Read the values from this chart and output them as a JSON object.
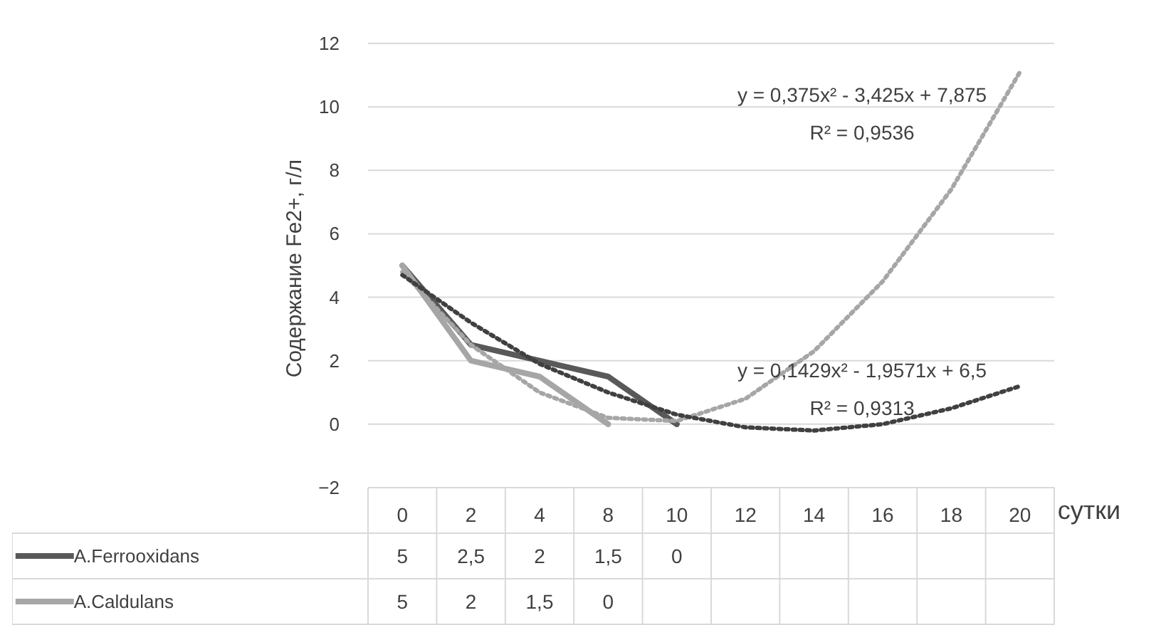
{
  "chart_data": {
    "type": "line",
    "ylabel": "Содержание Fe2+,  г/л",
    "xlabel": "сутки",
    "categories": [
      "0",
      "2",
      "4",
      "8",
      "10",
      "12",
      "14",
      "16",
      "18",
      "20"
    ],
    "series": [
      {
        "name": "A.Ferrooxidans",
        "color": "#595959",
        "values": [
          5,
          2.5,
          2,
          1.5,
          0,
          null,
          null,
          null,
          null,
          null
        ],
        "value_labels": [
          "5",
          "2,5",
          "2",
          "1,5",
          "0",
          null,
          null,
          null,
          null,
          null
        ]
      },
      {
        "name": "A.Caldulans",
        "color": "#a6a6a6",
        "values": [
          5,
          2,
          1.5,
          0,
          null,
          null,
          null,
          null,
          null,
          null
        ],
        "value_labels": [
          "5",
          "2",
          "1,5",
          "0",
          null,
          null,
          null,
          null,
          null,
          null
        ]
      },
      {
        "type": "line",
        "line_style": "dotted",
        "color": "#a6a6a6",
        "values": [
          4.8,
          2.5,
          1.0,
          0.2,
          0.1,
          0.8,
          2.3,
          4.5,
          7.4,
          11.1
        ]
      },
      {
        "type": "line",
        "line_style": "dotted",
        "color": "#404040",
        "values": [
          4.7,
          3.2,
          1.9,
          1.0,
          0.3,
          -0.1,
          -0.2,
          0.0,
          0.5,
          1.2
        ]
      }
    ],
    "annotations": [
      "y = 0,375x² - 3,425x + 7,875",
      "R² = 0,9536",
      "y = 0,1429x² - 1,9571x + 6,5",
      "R² = 0,9313"
    ],
    "legend": "bottom",
    "ylim": [
      -2,
      12
    ],
    "yticks": [
      -2,
      0,
      2,
      4,
      6,
      8,
      10,
      12
    ],
    "grid": "y"
  }
}
